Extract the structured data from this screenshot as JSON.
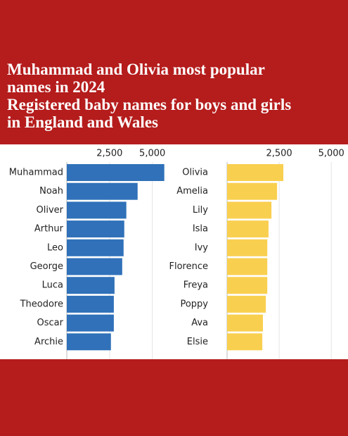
{
  "header": {
    "title": "Muhammad and Olivia most popular names in 2024",
    "subtitle": "Registered baby names for boys and girls in England and Wales"
  },
  "chart_data": [
    {
      "type": "bar",
      "orientation": "horizontal",
      "color": "#3071b9",
      "categories": [
        "Muhammad",
        "Noah",
        "Oliver",
        "Arthur",
        "Leo",
        "George",
        "Luca",
        "Theodore",
        "Oscar",
        "Archie"
      ],
      "values": [
        5700,
        4140,
        3480,
        3360,
        3320,
        3240,
        2790,
        2750,
        2750,
        2580
      ],
      "xlim": [
        0,
        6000
      ],
      "xticks": [
        {
          "value": 2500,
          "label": "2,500"
        },
        {
          "value": 5000,
          "label": "5,000"
        }
      ],
      "grid": true
    },
    {
      "type": "bar",
      "orientation": "horizontal",
      "color": "#f9cf4f",
      "categories": [
        "Olivia",
        "Amelia",
        "Lily",
        "Isla",
        "Ivy",
        "Florence",
        "Freya",
        "Poppy",
        "Ava",
        "Elsie"
      ],
      "values": [
        2700,
        2400,
        2130,
        1990,
        1930,
        1930,
        1930,
        1860,
        1720,
        1690
      ],
      "xlim": [
        0,
        5500
      ],
      "xticks": [
        {
          "value": 2500,
          "label": "2,500"
        },
        {
          "value": 5000,
          "label": "5,000"
        }
      ],
      "grid": true
    }
  ]
}
